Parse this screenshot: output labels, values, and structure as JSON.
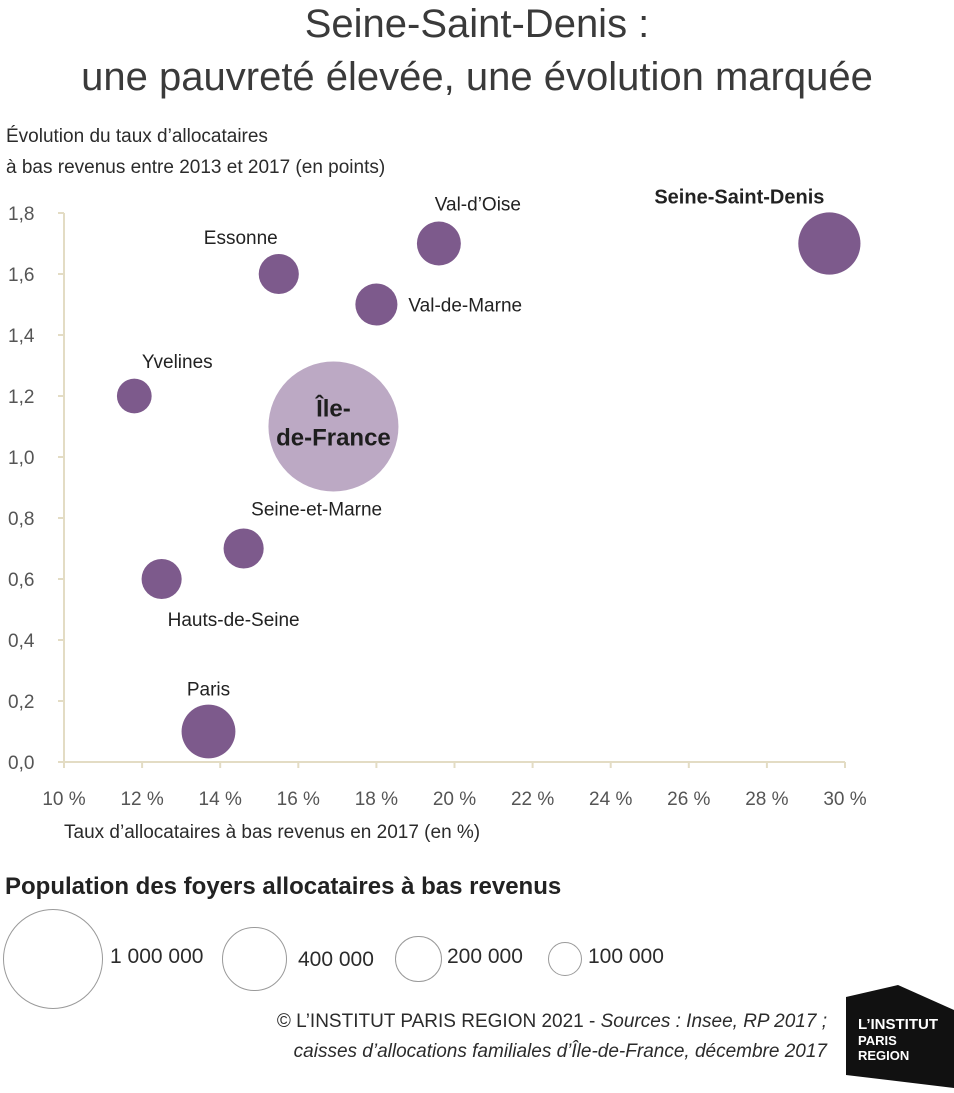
{
  "header": {
    "title_line1": "Seine-Saint-Denis :",
    "title_line2": "une pauvreté élevée, une évolution marquée"
  },
  "chart_data": {
    "type": "scatter",
    "ylabel_line1": "Évolution du taux d’allocataires",
    "ylabel_line2": "à bas revenus entre 2013 et 2017 (en points)",
    "xlabel": "Taux d’allocataires à bas revenus en 2017 (en %)",
    "xlim": [
      10,
      30
    ],
    "ylim": [
      0,
      1.8
    ],
    "x_ticks": [
      "10 %",
      "12 %",
      "14 %",
      "16 %",
      "18 %",
      "20 %",
      "22 %",
      "24 %",
      "26 %",
      "28 %",
      "30 %"
    ],
    "y_ticks": [
      "0,0",
      "0,2",
      "0,4",
      "0,6",
      "0,8",
      "1,0",
      "1,2",
      "1,4",
      "1,6",
      "1,8"
    ],
    "grid": false,
    "colors": {
      "department": "#7d5a8c",
      "region": "#bca9c4",
      "axis": "#e3dcc4"
    },
    "points": [
      {
        "label": "Paris",
        "x": 13.7,
        "y": 0.1,
        "population": 180000
      },
      {
        "label": "Hauts-de-Seine",
        "x": 12.5,
        "y": 0.6,
        "population": 100000
      },
      {
        "label": "Seine-et-Marne",
        "x": 14.6,
        "y": 0.7,
        "population": 100000
      },
      {
        "label": "Yvelines",
        "x": 11.8,
        "y": 1.2,
        "population": 75000
      },
      {
        "label": "Essonne",
        "x": 15.5,
        "y": 1.6,
        "population": 100000
      },
      {
        "label": "Val-de-Marne",
        "x": 18.0,
        "y": 1.5,
        "population": 110000
      },
      {
        "label": "Val-d’Oise",
        "x": 19.6,
        "y": 1.7,
        "population": 120000
      },
      {
        "label": "Seine-Saint-Denis",
        "x": 29.6,
        "y": 1.7,
        "population": 240000
      },
      {
        "label_line1": "Île-",
        "label_line2": "de-France",
        "x": 16.9,
        "y": 1.1,
        "population": 1050000
      }
    ]
  },
  "legend": {
    "title": "Population des foyers allocataires à bas revenus",
    "items": [
      {
        "label": "1 000 000",
        "population": 1000000
      },
      {
        "label": "400 000",
        "population": 400000
      },
      {
        "label": "200 000",
        "population": 200000
      },
      {
        "label": "100 000",
        "population": 100000
      }
    ]
  },
  "credits": {
    "line1_prefix": "© L’INSTITUT PARIS REGION 2021 - ",
    "line1_italic": "Sources : Insee, RP 2017 ;",
    "line2": "caisses d’allocations familiales d’Île-de-France, décembre 2017"
  },
  "logo": {
    "line1": "L’INSTITUT",
    "line2": "PARIS",
    "line3": "REGION",
    "color": "#111111"
  }
}
